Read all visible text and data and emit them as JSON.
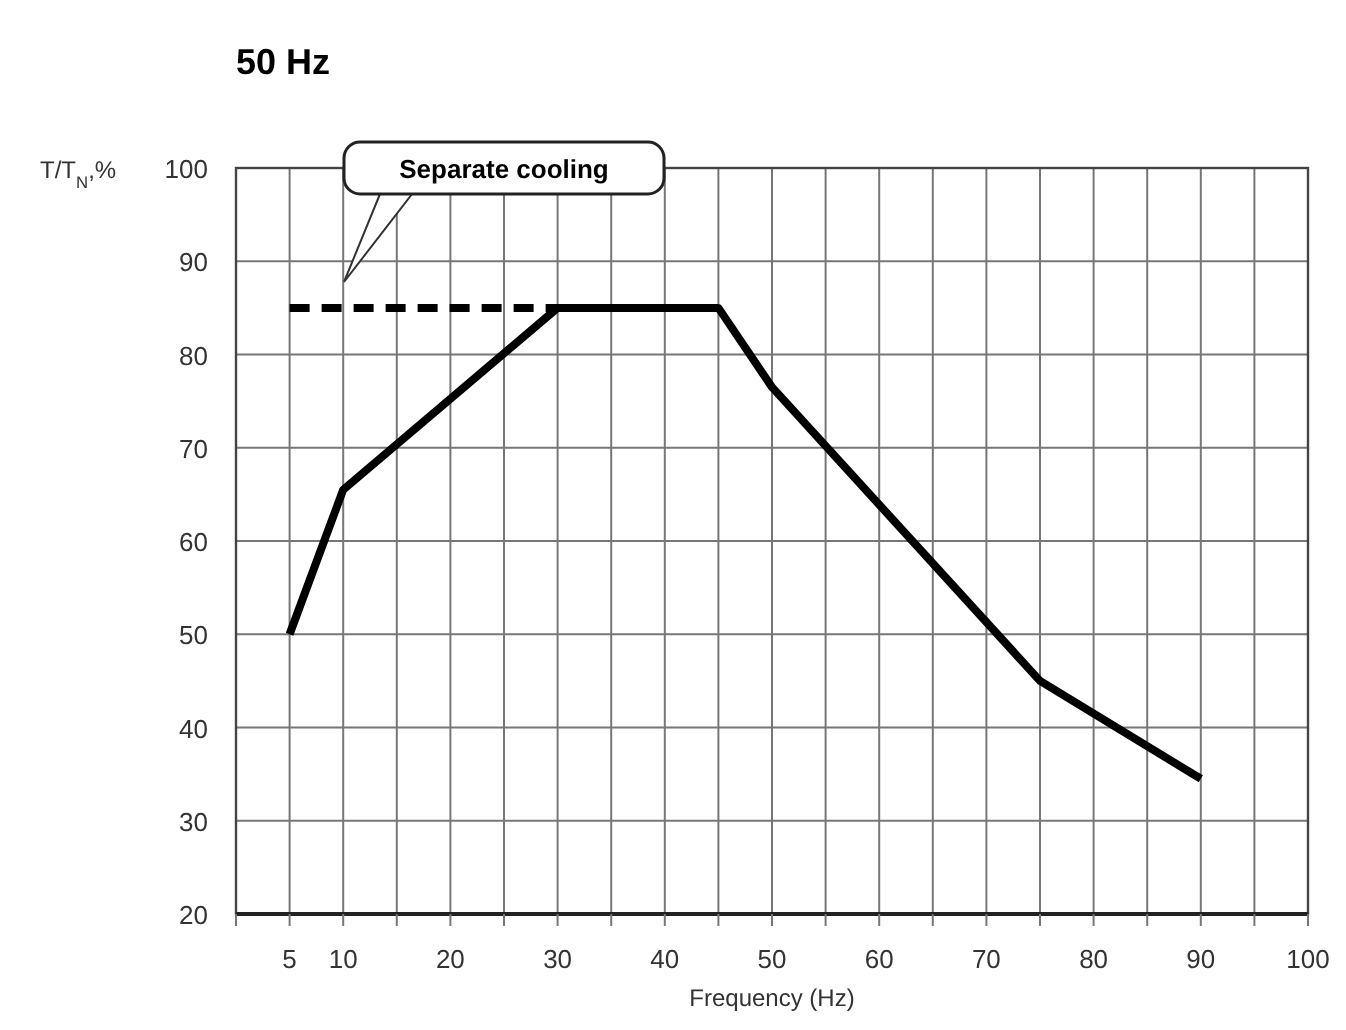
{
  "chart_data": {
    "type": "line",
    "title": "50 Hz",
    "xlabel": "Frequency (Hz)",
    "ylabel": "T/T$_{N}$,%",
    "xlim": [
      0,
      100
    ],
    "ylim": [
      20,
      100
    ],
    "xticks": [
      {
        "value": 0,
        "label": null
      },
      5,
      10,
      {
        "value": 15,
        "label": null
      },
      20,
      {
        "value": 25,
        "label": null
      },
      30,
      {
        "value": 35,
        "label": null
      },
      40,
      {
        "value": 45,
        "label": null
      },
      50,
      {
        "value": 55,
        "label": null
      },
      60,
      {
        "value": 65,
        "label": null
      },
      70,
      {
        "value": 75,
        "label": null
      },
      80,
      {
        "value": 85,
        "label": null
      },
      90,
      {
        "value": 95,
        "label": null
      },
      100
    ],
    "yticks": [
      20,
      30,
      40,
      50,
      60,
      70,
      80,
      90,
      100
    ],
    "grid": true,
    "marker": "none",
    "series": [
      {
        "color": "#000000",
        "line_style": "solid",
        "x": [
          5,
          10,
          30,
          45,
          50,
          75,
          90
        ],
        "values": [
          50,
          65.5,
          85,
          85,
          76.5,
          45,
          34.5
        ]
      },
      {
        "color": "#000000",
        "line_style": "dashed",
        "x": [
          5,
          30
        ],
        "values": [
          85,
          85
        ]
      }
    ],
    "annotations": [
      "Separate cooling"
    ]
  }
}
